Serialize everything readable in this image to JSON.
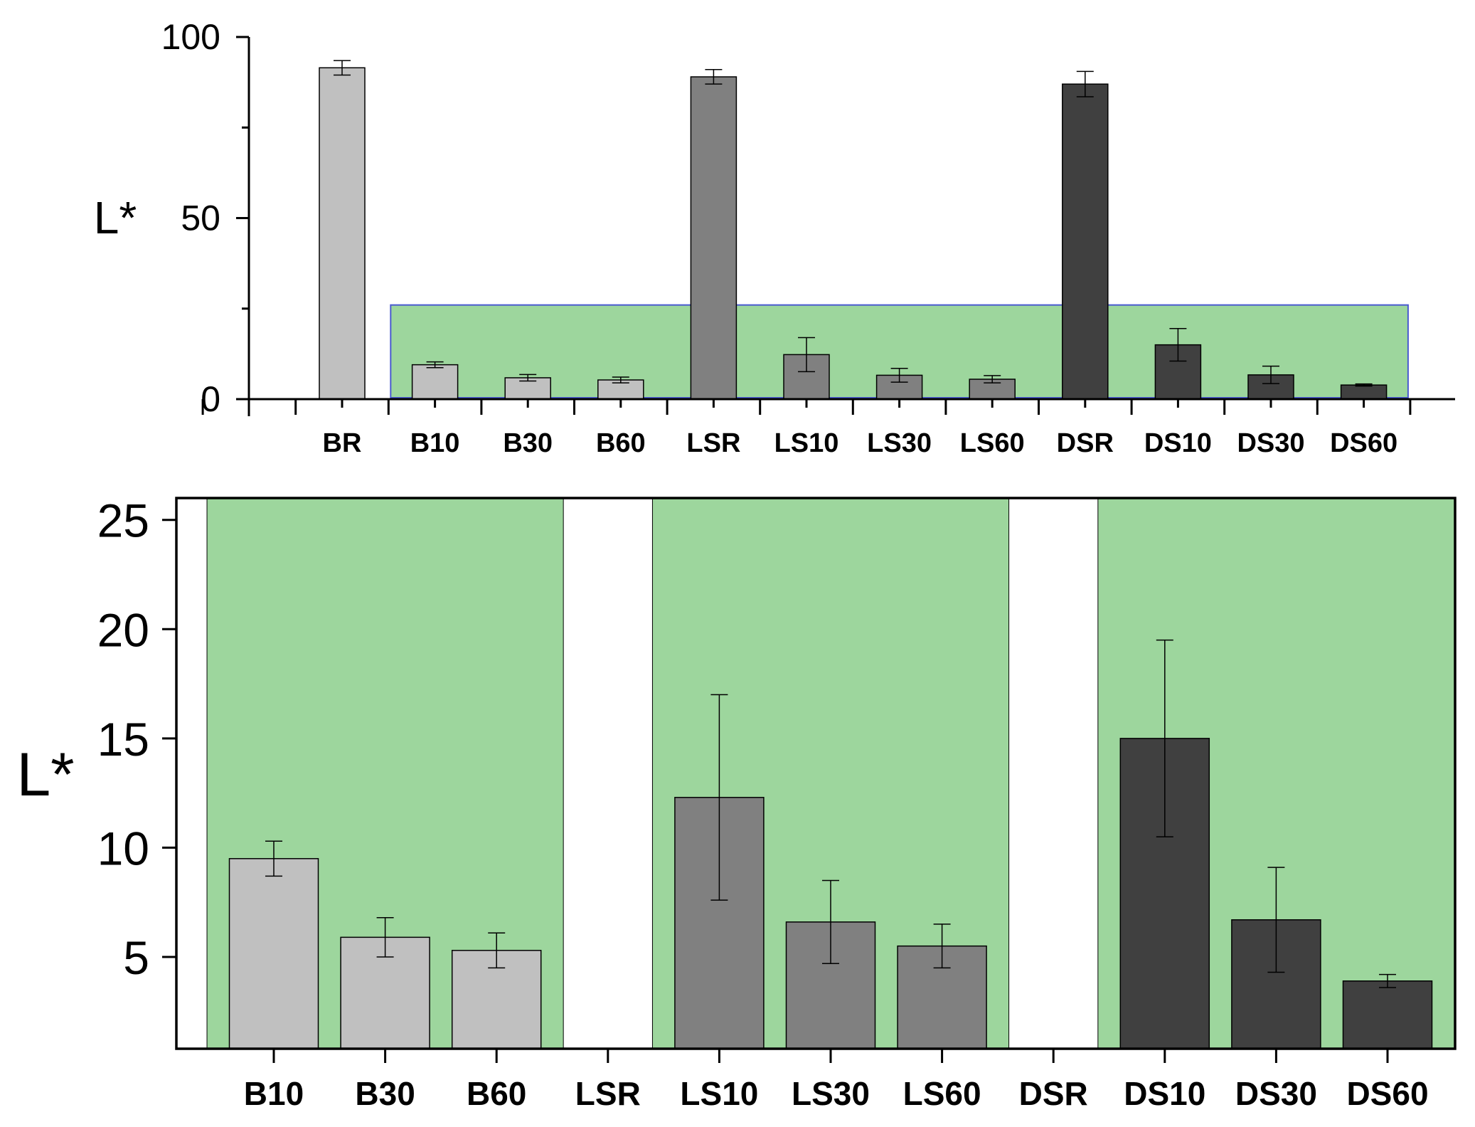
{
  "chart_data": [
    {
      "type": "bar",
      "panel": "top",
      "ylabel": "L*",
      "xlabel": "",
      "ylim": [
        0,
        100
      ],
      "yticks": [
        "0",
        "50",
        "100"
      ],
      "categories": [
        "BR",
        "B10",
        "B30",
        "B60",
        "LSR",
        "LS10",
        "LS30",
        "LS60",
        "DSR",
        "DS10",
        "DS30",
        "DS60"
      ],
      "values": [
        91.5,
        9.5,
        5.9,
        5.3,
        89.0,
        12.3,
        6.6,
        5.5,
        87.0,
        15.0,
        6.7,
        3.9
      ],
      "errors": [
        2.0,
        0.8,
        0.9,
        0.8,
        2.0,
        4.7,
        1.9,
        1.0,
        3.5,
        4.5,
        2.4,
        0.3
      ],
      "groups": [
        "B",
        "B",
        "B",
        "B",
        "LS",
        "LS",
        "LS",
        "LS",
        "DS",
        "DS",
        "DS",
        "DS"
      ],
      "highlight_range": [
        0,
        26
      ],
      "highlight_from": "B10",
      "highlight_to": "DS60"
    },
    {
      "type": "bar",
      "panel": "bottom",
      "ylabel": "L*",
      "xlabel": "",
      "ylim": [
        0.8,
        26
      ],
      "yticks": [
        "5",
        "10",
        "15",
        "20",
        "25"
      ],
      "categories": [
        "B10",
        "B30",
        "B60",
        "LSR",
        "LS10",
        "LS30",
        "LS60",
        "DSR",
        "DS10",
        "DS30",
        "DS60"
      ],
      "values": [
        9.5,
        5.9,
        5.3,
        null,
        12.3,
        6.6,
        5.5,
        null,
        15.0,
        6.7,
        3.9
      ],
      "errors": [
        0.8,
        0.9,
        0.8,
        null,
        4.7,
        1.9,
        1.0,
        null,
        4.5,
        2.4,
        0.3
      ],
      "groups": [
        "B",
        "B",
        "B",
        "LS",
        "LS",
        "LS",
        "LS",
        "DS",
        "DS",
        "DS",
        "DS"
      ],
      "shaded_groups": [
        [
          "B10",
          "B60"
        ],
        [
          "LS10",
          "LS60"
        ],
        [
          "DS10",
          "DS60"
        ]
      ]
    }
  ],
  "colors": {
    "B": "#c0c0c0",
    "LS": "#808080",
    "DS": "#404040",
    "highlight": "#9dd69d",
    "highlight_border": "#4a5ad0"
  }
}
